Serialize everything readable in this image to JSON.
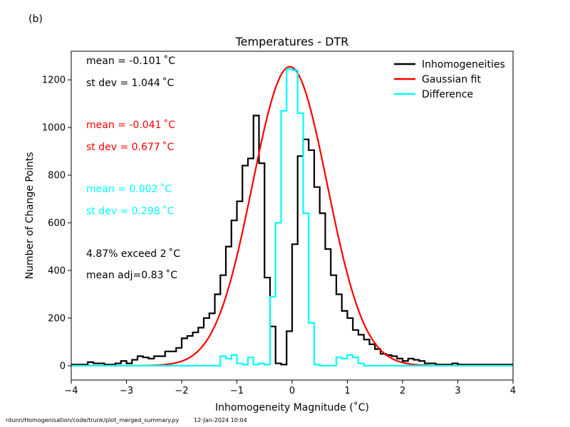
{
  "panel_label": "(b)",
  "footer": {
    "path": "rdunn/Homogenisation/code/trunk/plot_merged_summary.py",
    "date": "12-Jan-2024 10:04"
  },
  "annotations": [
    {
      "text": "mean = -0.101$^\\circ$C",
      "display": "mean = -0.101 ˚C",
      "color": "#000000"
    },
    {
      "text": "st dev =  1.044 ˚C",
      "display": "st dev =  1.044 ˚C",
      "color": "#000000"
    },
    {
      "text": "mean = -0.041 ˚C",
      "display": "mean = -0.041 ˚C",
      "color": "#ff0000"
    },
    {
      "text": "st dev =  0.677 ˚C",
      "display": "st dev =  0.677 ˚C",
      "color": "#ff0000"
    },
    {
      "text": "mean =  0.002 ˚C",
      "display": "mean =  0.002 ˚C",
      "color": "#00ffff"
    },
    {
      "text": "st dev =  0.298 ˚C",
      "display": "st dev =  0.298 ˚C",
      "color": "#00ffff"
    },
    {
      "text": "4.87% exceed 2 ˚C",
      "display": "4.87% exceed 2 ˚C",
      "color": "#000000"
    },
    {
      "text": "mean adj=0.83 ˚C",
      "display": "mean adj=0.83 ˚C",
      "color": "#000000"
    }
  ],
  "chart_data": {
    "type": "line",
    "title": "Temperatures - DTR",
    "xlabel": "Inhomogeneity Magnitude (˚C)",
    "ylabel": "Number of Change Points",
    "xlim": [
      -4,
      4
    ],
    "ylim": [
      -60,
      1320
    ],
    "xticks": [
      -4,
      -3,
      -2,
      -1,
      0,
      1,
      2,
      3,
      4
    ],
    "yticks": [
      0,
      200,
      400,
      600,
      800,
      1000,
      1200
    ],
    "grid": false,
    "legend_position": "top-right",
    "bin_width": 0.1,
    "series": [
      {
        "name": "Inhomogeneities",
        "color": "#000000",
        "style": "step",
        "x": [
          -4.0,
          -3.9,
          -3.8,
          -3.7,
          -3.6,
          -3.5,
          -3.4,
          -3.3,
          -3.2,
          -3.1,
          -3.0,
          -2.9,
          -2.8,
          -2.7,
          -2.6,
          -2.5,
          -2.4,
          -2.3,
          -2.2,
          -2.1,
          -2.0,
          -1.9,
          -1.8,
          -1.7,
          -1.6,
          -1.5,
          -1.4,
          -1.3,
          -1.2,
          -1.1,
          -1.0,
          -0.9,
          -0.8,
          -0.7,
          -0.6,
          -0.5,
          -0.4,
          -0.3,
          -0.2,
          -0.1,
          0.0,
          0.1,
          0.2,
          0.3,
          0.4,
          0.5,
          0.6,
          0.7,
          0.8,
          0.9,
          1.0,
          1.1,
          1.2,
          1.3,
          1.4,
          1.5,
          1.6,
          1.7,
          1.8,
          1.9,
          2.0,
          2.1,
          2.2,
          2.3,
          2.4,
          2.5,
          2.6,
          2.7,
          2.8,
          2.9,
          3.0,
          3.1,
          3.2,
          3.3,
          3.4,
          3.5,
          3.6,
          3.7,
          3.8,
          3.9
        ],
        "values": [
          5,
          5,
          5,
          15,
          10,
          10,
          5,
          5,
          10,
          20,
          10,
          25,
          40,
          35,
          30,
          40,
          40,
          60,
          60,
          75,
          115,
          125,
          140,
          160,
          200,
          220,
          300,
          380,
          500,
          610,
          690,
          840,
          870,
          1050,
          850,
          370,
          165,
          10,
          5,
          145,
          510,
          880,
          950,
          905,
          750,
          640,
          490,
          380,
          300,
          230,
          200,
          150,
          130,
          110,
          90,
          70,
          50,
          45,
          40,
          30,
          20,
          30,
          25,
          20,
          10,
          10,
          5,
          5,
          5,
          10,
          5,
          5,
          5,
          5,
          5,
          5,
          5,
          5,
          5,
          5
        ]
      },
      {
        "name": "Gaussian fit",
        "color": "#ff0000",
        "style": "curve",
        "gaussian": {
          "mean": -0.041,
          "sigma": 0.677,
          "peak": 1255
        }
      },
      {
        "name": "Difference",
        "color": "#00ffff",
        "style": "step",
        "x": [
          -4.0,
          -3.9,
          -3.8,
          -3.7,
          -3.6,
          -3.5,
          -3.4,
          -3.3,
          -3.2,
          -3.1,
          -3.0,
          -2.9,
          -2.8,
          -2.7,
          -2.6,
          -2.5,
          -2.4,
          -2.3,
          -2.2,
          -2.1,
          -2.0,
          -1.9,
          -1.8,
          -1.7,
          -1.6,
          -1.5,
          -1.4,
          -1.3,
          -1.2,
          -1.1,
          -1.0,
          -0.9,
          -0.8,
          -0.7,
          -0.6,
          -0.5,
          -0.4,
          -0.3,
          -0.2,
          -0.1,
          0.0,
          0.1,
          0.2,
          0.3,
          0.4,
          0.5,
          0.6,
          0.7,
          0.8,
          0.9,
          1.0,
          1.1,
          1.2,
          1.3,
          1.4,
          1.5,
          1.6,
          1.7,
          1.8,
          1.9,
          2.0,
          2.1,
          2.2,
          2.3,
          2.4,
          2.5,
          2.6,
          2.7,
          2.8,
          2.9,
          3.0,
          3.1,
          3.2,
          3.3,
          3.4,
          3.5,
          3.6,
          3.7,
          3.8,
          3.9
        ],
        "values": [
          0,
          0,
          0,
          0,
          0,
          0,
          0,
          0,
          0,
          0,
          0,
          0,
          0,
          0,
          0,
          0,
          0,
          0,
          0,
          0,
          0,
          0,
          0,
          0,
          0,
          0,
          0,
          40,
          30,
          45,
          10,
          5,
          35,
          5,
          10,
          5,
          290,
          600,
          1070,
          1245,
          1240,
          1060,
          640,
          180,
          5,
          0,
          0,
          0,
          35,
          30,
          45,
          35,
          10,
          0,
          0,
          0,
          0,
          0,
          0,
          0,
          0,
          0,
          0,
          0,
          0,
          0,
          0,
          0,
          0,
          0,
          0,
          0,
          0,
          0,
          0,
          0,
          0,
          0,
          0,
          0
        ]
      }
    ]
  }
}
